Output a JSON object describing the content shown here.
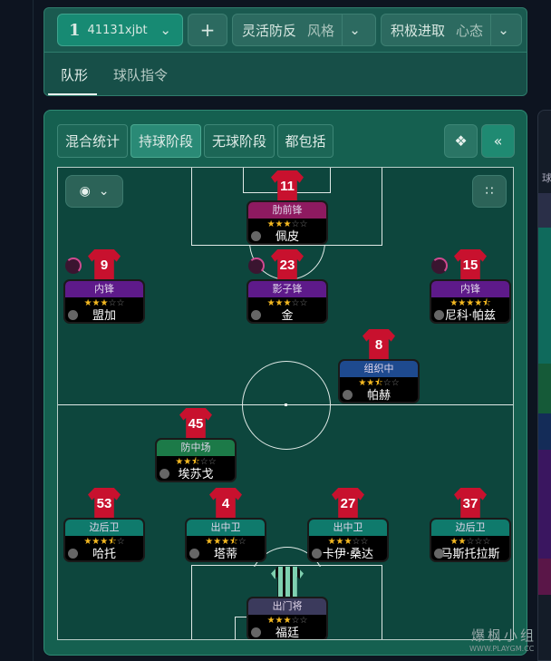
{
  "header": {
    "tactic_number": "1",
    "tactic_name": "41131xjbt",
    "add_label": "+",
    "style_value": "灵活防反",
    "style_label": "风格",
    "mentality_value": "积极进取",
    "mentality_label": "心态"
  },
  "tabs": [
    {
      "label": "队形",
      "active": true
    },
    {
      "label": "球队指令",
      "active": false
    }
  ],
  "phase_tabs": [
    {
      "label": "混合统计",
      "active": false
    },
    {
      "label": "持球阶段",
      "active": true
    },
    {
      "label": "无球阶段",
      "active": false
    },
    {
      "label": "都包括",
      "active": false
    }
  ],
  "right_panel": {
    "label": "球"
  },
  "watermark": {
    "text": "爆枫小组",
    "url": "WWW.PLAYGM.CC"
  },
  "role_colors": {
    "attack_wing": "#8e1a60",
    "forward": "#5e1a8a",
    "playmaker": "#1e4a8f",
    "dm": "#1c7a48",
    "defender": "#0f7a6c",
    "gk": "#3b3a5c"
  },
  "players": [
    {
      "number": "11",
      "role": "肋前锋",
      "name": "佩皮",
      "rating": 3,
      "color": "#8e1a60"
    },
    {
      "number": "9",
      "role": "内锋",
      "name": "盟加",
      "rating": 3,
      "color": "#5e1a8a"
    },
    {
      "number": "23",
      "role": "影子锋",
      "name": "金",
      "rating": 3,
      "color": "#5e1a8a"
    },
    {
      "number": "15",
      "role": "内锋",
      "name": "尼科·帕兹",
      "rating": 4.5,
      "color": "#5e1a8a"
    },
    {
      "number": "8",
      "role": "组织中",
      "name": "帕赫",
      "rating": 2.5,
      "color": "#1e4a8f"
    },
    {
      "number": "45",
      "role": "防中场",
      "name": "埃苏戈",
      "rating": 2.5,
      "color": "#1c7a48"
    },
    {
      "number": "53",
      "role": "边后卫",
      "name": "哈托",
      "rating": 3.5,
      "color": "#0f7a6c"
    },
    {
      "number": "4",
      "role": "出中卫",
      "name": "塔蒂",
      "rating": 3.5,
      "color": "#0f7a6c"
    },
    {
      "number": "27",
      "role": "出中卫",
      "name": "卡伊·桑达",
      "rating": 3,
      "color": "#0f7a6c"
    },
    {
      "number": "37",
      "role": "边后卫",
      "name": "马斯托拉斯",
      "rating": 2,
      "color": "#0f7a6c"
    },
    {
      "number": "",
      "role": "出门将",
      "name": "福廷",
      "rating": 3,
      "color": "#3b3a5c"
    }
  ]
}
